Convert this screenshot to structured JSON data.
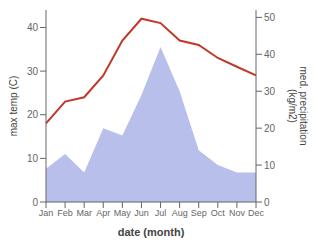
{
  "chart_data": {
    "type": "line",
    "categories": [
      "Jan",
      "Feb",
      "Mar",
      "Apr",
      "May",
      "Jun",
      "Jul",
      "Aug",
      "Sep",
      "Oct",
      "Nov",
      "Dec"
    ],
    "series": [
      {
        "type": "area",
        "color": "#b0b8e8",
        "axis": "y2",
        "values": [
          9,
          13,
          8,
          20,
          18,
          29,
          42,
          30,
          14,
          10,
          8,
          8
        ]
      },
      {
        "type": "line",
        "color": "#c0392b",
        "axis": "y",
        "values": [
          18,
          23,
          24,
          29,
          37,
          42,
          41,
          37,
          36,
          33,
          31,
          29
        ]
      }
    ],
    "ylim": [
      0,
      44
    ],
    "yticks": [
      0,
      10,
      20,
      30,
      40
    ],
    "y2lim": [
      0,
      52
    ],
    "y2ticks": [
      0,
      10,
      20,
      30,
      40,
      50
    ],
    "ylabel": "max temp (C)",
    "y2label": "med. precipitation\n(kg/m2)",
    "xlabel": "date (month)",
    "grid": false
  }
}
